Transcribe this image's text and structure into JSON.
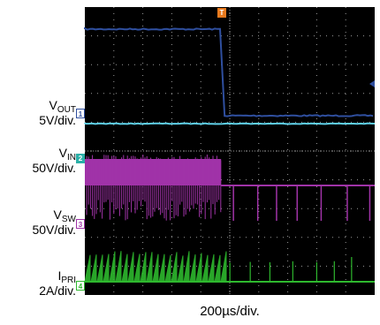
{
  "chart_data": {
    "type": "line",
    "time_per_div": "200µs/div.",
    "trigger_marker": "T",
    "colors": {
      "background": "#000000",
      "grid": "#9a9a9a",
      "vout": "#2f4f9f",
      "vin": "#5fd0e8",
      "vsw": "#a033a8",
      "ipri": "#2eb82e"
    },
    "channels": [
      {
        "name": "V_OUT",
        "label": "V",
        "subscript": "OUT",
        "scale": "5V/div.",
        "number": "1",
        "marker_style": "open",
        "description": "step from high to low at about 4.7 divisions"
      },
      {
        "name": "V_IN",
        "label": "V",
        "subscript": "IN",
        "scale": "50V/div.",
        "number": "2",
        "marker_style": "filled",
        "description": "flat trace"
      },
      {
        "name": "V_SW",
        "label": "V",
        "subscript": "SW",
        "scale": "50V/div.",
        "number": "3",
        "marker_style": "open",
        "description": "dense switching until about 4.7 divisions, then sparse pulses"
      },
      {
        "name": "I_PRI",
        "label": "I",
        "subscript": "PRI",
        "scale": "2A/div.",
        "number": "4",
        "marker_style": "open",
        "description": "sawtooth bursts until about 4.7 divisions, then sparse spikes"
      }
    ],
    "x_divisions": 10,
    "y_divisions": 10,
    "event_division": 4.7
  }
}
